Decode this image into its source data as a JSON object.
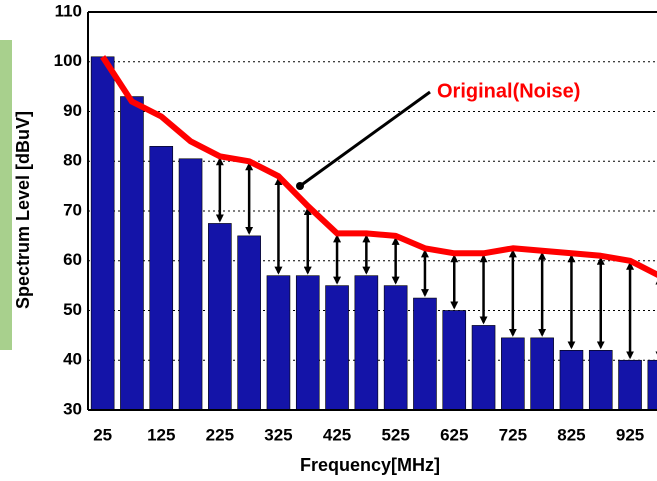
{
  "chart_data": {
    "type": "bar",
    "x_label": "Frequency[MHz]",
    "y_label": "Spectrum Level [dBuV]",
    "categories": [
      "25",
      null,
      "125",
      null,
      "225",
      null,
      "325",
      null,
      "425",
      null,
      "525",
      null,
      "625",
      null,
      "725",
      null,
      "825",
      null,
      "925",
      null
    ],
    "series": [
      {
        "type": "bar",
        "color": "#1414a8",
        "values": [
          101,
          93,
          83,
          80.5,
          67.5,
          65,
          57,
          57,
          55,
          57,
          55,
          52.5,
          50,
          47,
          44.5,
          44.5,
          42,
          42,
          40,
          40
        ]
      },
      {
        "type": "line",
        "name": "Original(Noise)",
        "color": "#ff0000",
        "values": [
          101,
          92,
          89,
          84,
          81,
          80,
          77,
          71,
          65.5,
          65.5,
          65,
          62.5,
          61.5,
          61.5,
          62.5,
          62,
          61.5,
          61,
          60,
          57
        ]
      }
    ],
    "ylim": [
      30,
      110
    ],
    "yticks": [
      30,
      40,
      50,
      60,
      70,
      80,
      90,
      100,
      110
    ],
    "grid": true
  }
}
